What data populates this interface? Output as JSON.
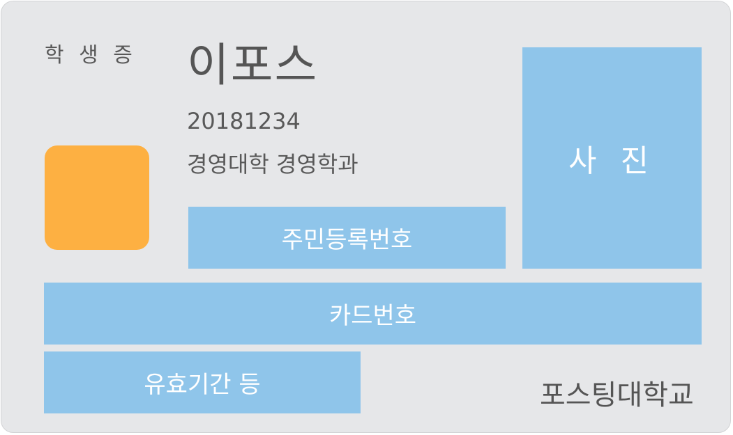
{
  "card": {
    "type_label": "학 생 증",
    "name": "이포스",
    "student_id": "20181234",
    "department": "경영대학 경영학과",
    "photo_label": "사 진",
    "rrn_label": "주민등록번호",
    "card_number_label": "카드번호",
    "validity_label": "유효기간 등",
    "school_name": "포스팅대학교"
  },
  "colors": {
    "card_background": "#e6e7e9",
    "field_box": "#8fc5ea",
    "chip": "#fdb042",
    "text": "#595959"
  }
}
